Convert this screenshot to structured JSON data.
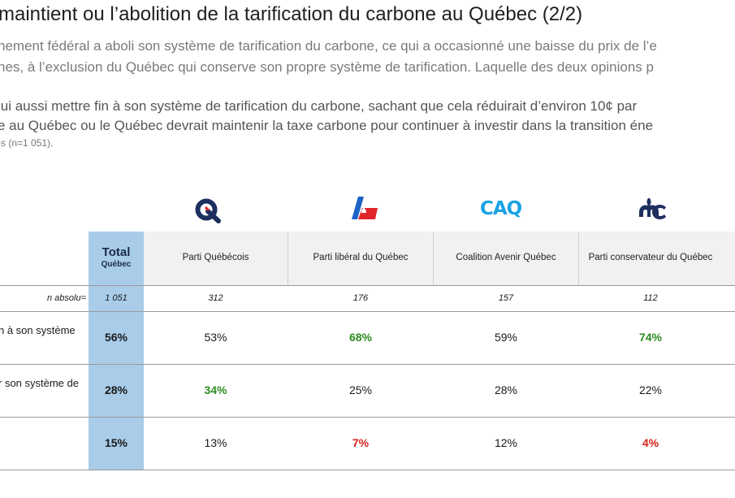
{
  "title": "maintient ou l’abolition de la tarification du carbone au Québec (2/2)",
  "intro": {
    "line1": "nement fédéral a aboli son système de tarification du carbone, ce qui a occasionné une baisse du prix de l’e",
    "line2": "nes, à l’exclusion du Québec qui conserve son propre système de tarification. Laquelle des deux opinions p"
  },
  "question": {
    "line1": "lui aussi mettre fin à son système de tarification du carbone, sachant que cela réduirait d’environ 10¢ par",
    "line2": "e au Québec ou le Québec devrait maintenir la taxe carbone pour continuer à investir dans la transition éne"
  },
  "base_note": "-s (n=1 051).",
  "table": {
    "total_header": {
      "line1": "Total",
      "line2": "Québec"
    },
    "parties": [
      {
        "name": "Parti Québécois",
        "logo": "pq-logo"
      },
      {
        "name": "Parti libéral du Québec",
        "logo": "plq-logo"
      },
      {
        "name": "Coalition Avenir Québec",
        "logo": "caq-logo",
        "logo_text": "CAQ"
      },
      {
        "name": "Parti conservateur du Québec",
        "logo": "pcq-logo"
      }
    ],
    "n_label": "n absolu=",
    "n_values": [
      "1 051",
      "312",
      "176",
      "157",
      "112"
    ],
    "rows": [
      {
        "label_line1": "n à son système",
        "label_line2": "",
        "total": "56%",
        "values": [
          "53%",
          "68%",
          "59%",
          "74%"
        ],
        "value_colors": [
          "default",
          "green",
          "default",
          "green"
        ]
      },
      {
        "label_line1": "r son système de",
        "label_line2": "",
        "total": "28%",
        "values": [
          "34%",
          "25%",
          "28%",
          "22%"
        ],
        "value_colors": [
          "green",
          "default",
          "default",
          "default"
        ]
      },
      {
        "label_line1": "",
        "label_line2": "",
        "total": "15%",
        "values": [
          "13%",
          "7%",
          "12%",
          "4%"
        ],
        "value_colors": [
          "default",
          "red",
          "default",
          "red"
        ]
      }
    ]
  },
  "colors": {
    "total_column": "#a9cce9",
    "significant_high": "#2e8b22",
    "significant_low": "#d8231b",
    "pq_blue": "#1c2f5e",
    "plq_red": "#e0242a",
    "plq_blue": "#1d63c7",
    "caq_blue": "#1aa3e3",
    "pcq_navy": "#1c2f5e"
  }
}
